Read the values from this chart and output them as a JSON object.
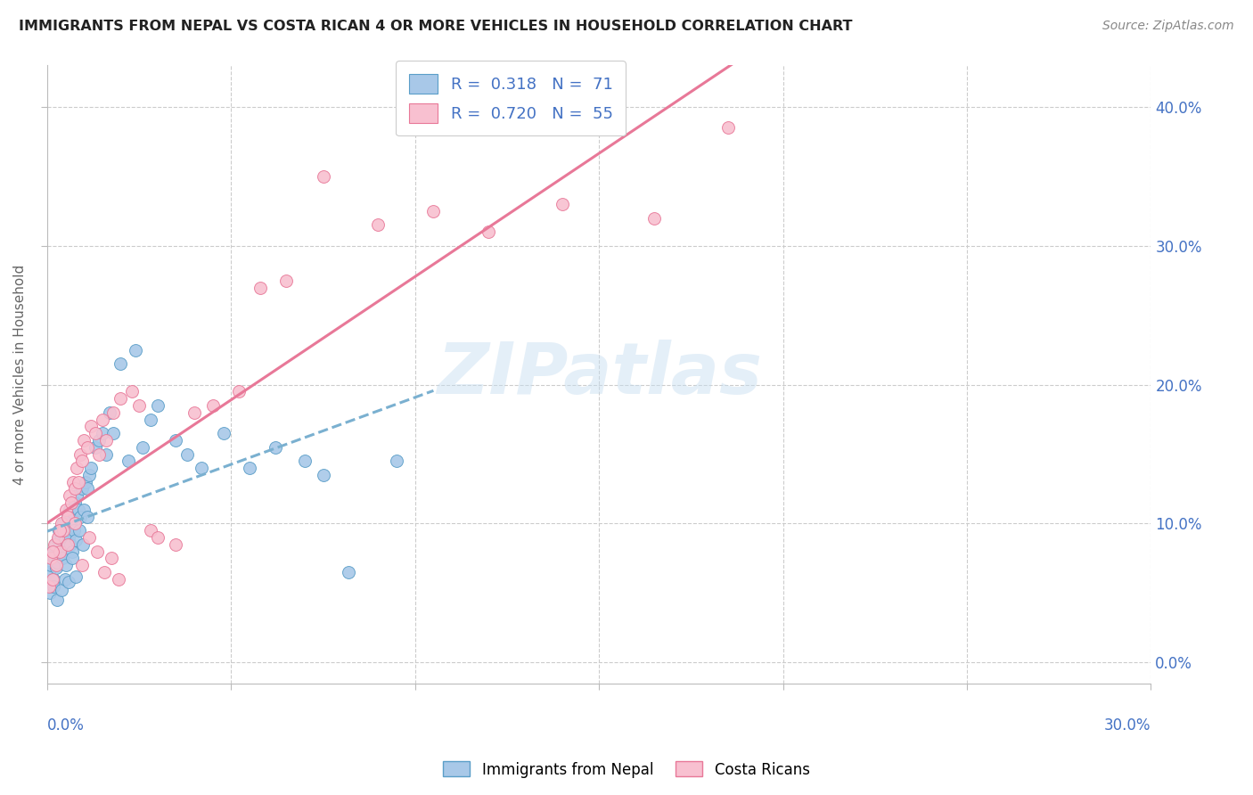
{
  "title": "IMMIGRANTS FROM NEPAL VS COSTA RICAN 4 OR MORE VEHICLES IN HOUSEHOLD CORRELATION CHART",
  "source": "Source: ZipAtlas.com",
  "ylabel": "4 or more Vehicles in Household",
  "xlim": [
    0.0,
    30.0
  ],
  "ylim": [
    -1.5,
    43.0
  ],
  "watermark": "ZIPatlas",
  "nepal_color": "#a8c8e8",
  "nepal_edge": "#5a9ec8",
  "nepal_line_color": "#7ab0d0",
  "costa_color": "#f8c0d0",
  "costa_edge": "#e87898",
  "costa_line_color": "#e87898",
  "ytick_vals": [
    0,
    10,
    20,
    30,
    40
  ],
  "xtick_vals": [
    0,
    5,
    10,
    15,
    20,
    25,
    30
  ],
  "nepal_scatter_x": [
    0.05,
    0.1,
    0.12,
    0.15,
    0.18,
    0.2,
    0.22,
    0.25,
    0.28,
    0.3,
    0.32,
    0.35,
    0.38,
    0.4,
    0.42,
    0.45,
    0.48,
    0.5,
    0.52,
    0.55,
    0.58,
    0.6,
    0.62,
    0.65,
    0.68,
    0.7,
    0.72,
    0.75,
    0.78,
    0.8,
    0.85,
    0.9,
    0.95,
    1.0,
    1.05,
    1.1,
    1.15,
    1.2,
    1.3,
    1.4,
    1.5,
    1.6,
    1.7,
    1.8,
    2.0,
    2.2,
    2.4,
    2.6,
    2.8,
    3.0,
    3.5,
    3.8,
    4.2,
    4.8,
    5.5,
    6.2,
    7.0,
    7.5,
    8.2,
    9.5,
    0.08,
    0.18,
    0.28,
    0.38,
    0.48,
    0.58,
    0.68,
    0.78,
    0.88,
    0.98,
    1.08
  ],
  "nepal_scatter_y": [
    6.5,
    7.0,
    5.5,
    8.0,
    6.0,
    7.5,
    8.5,
    6.8,
    7.2,
    8.8,
    9.5,
    7.8,
    8.2,
    9.0,
    7.5,
    10.0,
    8.8,
    9.5,
    7.0,
    10.5,
    9.0,
    11.0,
    8.5,
    9.8,
    8.0,
    10.8,
    9.5,
    11.5,
    8.8,
    12.0,
    11.0,
    10.5,
    12.5,
    11.0,
    13.0,
    12.5,
    13.5,
    14.0,
    15.5,
    16.0,
    16.5,
    15.0,
    18.0,
    16.5,
    21.5,
    14.5,
    22.5,
    15.5,
    17.5,
    18.5,
    16.0,
    15.0,
    14.0,
    16.5,
    14.0,
    15.5,
    14.5,
    13.5,
    6.5,
    14.5,
    5.0,
    5.5,
    4.5,
    5.2,
    6.0,
    5.8,
    7.5,
    6.2,
    9.5,
    8.5,
    10.5
  ],
  "costa_scatter_x": [
    0.05,
    0.1,
    0.15,
    0.2,
    0.25,
    0.3,
    0.35,
    0.4,
    0.45,
    0.5,
    0.55,
    0.6,
    0.65,
    0.7,
    0.75,
    0.8,
    0.85,
    0.9,
    0.95,
    1.0,
    1.1,
    1.2,
    1.3,
    1.4,
    1.5,
    1.6,
    1.8,
    2.0,
    2.3,
    2.5,
    2.8,
    3.0,
    3.5,
    4.0,
    4.5,
    5.2,
    5.8,
    6.5,
    7.5,
    9.0,
    10.5,
    12.0,
    14.0,
    16.5,
    18.5,
    0.15,
    0.35,
    0.55,
    0.75,
    0.95,
    1.15,
    1.35,
    1.55,
    1.75,
    1.95
  ],
  "costa_scatter_y": [
    5.5,
    7.5,
    6.0,
    8.5,
    7.0,
    9.0,
    8.0,
    10.0,
    9.5,
    11.0,
    10.5,
    12.0,
    11.5,
    13.0,
    12.5,
    14.0,
    13.0,
    15.0,
    14.5,
    16.0,
    15.5,
    17.0,
    16.5,
    15.0,
    17.5,
    16.0,
    18.0,
    19.0,
    19.5,
    18.5,
    9.5,
    9.0,
    8.5,
    18.0,
    18.5,
    19.5,
    27.0,
    27.5,
    35.0,
    31.5,
    32.5,
    31.0,
    33.0,
    32.0,
    38.5,
    8.0,
    9.5,
    8.5,
    10.0,
    7.0,
    9.0,
    8.0,
    6.5,
    7.5,
    6.0
  ]
}
